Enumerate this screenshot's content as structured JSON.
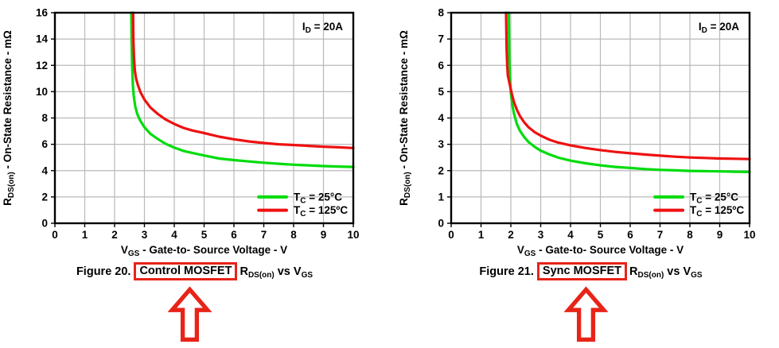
{
  "annotation_color": "#e82318",
  "figures": [
    {
      "caption": {
        "prefix": "Figure 20.",
        "highlight": "Control MOSFET",
        "r_pre": "R",
        "r_sub": "DS(on)",
        "vs": " vs ",
        "v_pre": "V",
        "v_sub": "GS"
      }
    },
    {
      "caption": {
        "prefix": "Figure 21.",
        "highlight": "Sync MOSFET",
        "r_pre": "R",
        "r_sub": "DS(on)",
        "vs": " vs ",
        "v_pre": "V",
        "v_sub": "GS"
      }
    }
  ],
  "chart_data": [
    {
      "type": "line",
      "title": "Control MOSFET RDS(on) vs VGS",
      "corner_annotation": {
        "pre": "I",
        "sub": "D",
        "post": " = 20A"
      },
      "xlabel": {
        "pre": "V",
        "sub": "GS",
        "post": " - Gate-to- Source Voltage - V"
      },
      "ylabel": {
        "pre": "R",
        "sub": "DS(on)",
        "post": " - On-State Resistance - mΩ"
      },
      "xlim": [
        0,
        10
      ],
      "ylim": [
        0,
        16
      ],
      "xticks": [
        0,
        1,
        2,
        3,
        4,
        5,
        6,
        7,
        8,
        9,
        10
      ],
      "yticks": [
        0,
        2,
        4,
        6,
        8,
        10,
        12,
        14,
        16
      ],
      "grid": true,
      "grid_color": "#b9b9b9",
      "axis_color": "#000000",
      "legend_position": "bottom-right",
      "series": [
        {
          "name": {
            "pre": "T",
            "sub": "C",
            "post": " = 25°C"
          },
          "color": "#00dc0c",
          "points": [
            [
              2.56,
              16
            ],
            [
              2.57,
              14
            ],
            [
              2.59,
              12
            ],
            [
              2.61,
              10.6
            ],
            [
              2.64,
              9.7
            ],
            [
              2.69,
              8.9
            ],
            [
              2.76,
              8.3
            ],
            [
              2.86,
              7.8
            ],
            [
              3.0,
              7.3
            ],
            [
              3.2,
              6.8
            ],
            [
              3.45,
              6.4
            ],
            [
              3.7,
              6.05
            ],
            [
              4.0,
              5.75
            ],
            [
              4.3,
              5.5
            ],
            [
              4.6,
              5.35
            ],
            [
              5.0,
              5.15
            ],
            [
              5.5,
              4.92
            ],
            [
              6.0,
              4.8
            ],
            [
              6.5,
              4.7
            ],
            [
              7.0,
              4.6
            ],
            [
              7.5,
              4.52
            ],
            [
              8.0,
              4.45
            ],
            [
              8.5,
              4.4
            ],
            [
              9.0,
              4.35
            ],
            [
              9.5,
              4.31
            ],
            [
              10,
              4.28
            ]
          ]
        },
        {
          "name": {
            "pre": "T",
            "sub": "C",
            "post": " = 125ºC"
          },
          "color": "#ee1111",
          "points": [
            [
              2.62,
              16
            ],
            [
              2.63,
              14
            ],
            [
              2.65,
              12.6
            ],
            [
              2.68,
              11.6
            ],
            [
              2.72,
              11.0
            ],
            [
              2.78,
              10.5
            ],
            [
              2.87,
              9.95
            ],
            [
              3.0,
              9.4
            ],
            [
              3.2,
              8.8
            ],
            [
              3.45,
              8.3
            ],
            [
              3.7,
              7.9
            ],
            [
              4.0,
              7.55
            ],
            [
              4.3,
              7.25
            ],
            [
              4.6,
              7.05
            ],
            [
              5.0,
              6.85
            ],
            [
              5.5,
              6.58
            ],
            [
              6.0,
              6.38
            ],
            [
              6.5,
              6.22
            ],
            [
              7.0,
              6.1
            ],
            [
              7.5,
              6.0
            ],
            [
              8.0,
              5.95
            ],
            [
              8.5,
              5.88
            ],
            [
              9.0,
              5.82
            ],
            [
              9.5,
              5.77
            ],
            [
              10,
              5.72
            ]
          ]
        }
      ]
    },
    {
      "type": "line",
      "title": "Sync MOSFET RDS(on) vs VGS",
      "corner_annotation": {
        "pre": "I",
        "sub": "D",
        "post": " = 20A"
      },
      "xlabel": {
        "pre": "V",
        "sub": "GS",
        "post": " - Gate-to- Source Voltage - V"
      },
      "ylabel": {
        "pre": "R",
        "sub": "DS(on)",
        "post": " - On-State Resistance - mΩ"
      },
      "xlim": [
        0,
        10
      ],
      "ylim": [
        0,
        8
      ],
      "xticks": [
        0,
        1,
        2,
        3,
        4,
        5,
        6,
        7,
        8,
        9,
        10
      ],
      "yticks": [
        0,
        1,
        2,
        3,
        4,
        5,
        6,
        7,
        8
      ],
      "grid": true,
      "grid_color": "#b9b9b9",
      "axis_color": "#000000",
      "legend_position": "bottom-right",
      "series": [
        {
          "name": {
            "pre": "T",
            "sub": "C",
            "post": " = 25°C"
          },
          "color": "#00dc0c",
          "points": [
            [
              1.93,
              8
            ],
            [
              1.94,
              7
            ],
            [
              1.95,
              6.2
            ],
            [
              1.97,
              5.6
            ],
            [
              2.0,
              4.95
            ],
            [
              2.05,
              4.5
            ],
            [
              2.1,
              4.18
            ],
            [
              2.2,
              3.78
            ],
            [
              2.3,
              3.52
            ],
            [
              2.45,
              3.27
            ],
            [
              2.6,
              3.08
            ],
            [
              2.8,
              2.9
            ],
            [
              3.0,
              2.76
            ],
            [
              3.3,
              2.61
            ],
            [
              3.6,
              2.49
            ],
            [
              4.0,
              2.38
            ],
            [
              4.5,
              2.28
            ],
            [
              5.0,
              2.2
            ],
            [
              5.5,
              2.14
            ],
            [
              6.0,
              2.1
            ],
            [
              6.5,
              2.06
            ],
            [
              7.0,
              2.03
            ],
            [
              7.5,
              2.01
            ],
            [
              8.0,
              1.99
            ],
            [
              8.5,
              1.98
            ],
            [
              9.0,
              1.97
            ],
            [
              9.5,
              1.96
            ],
            [
              10,
              1.95
            ]
          ]
        },
        {
          "name": {
            "pre": "T",
            "sub": "C",
            "post": " = 125ºC"
          },
          "color": "#ee1111",
          "points": [
            [
              1.84,
              8
            ],
            [
              1.85,
              7.2
            ],
            [
              1.86,
              6.5
            ],
            [
              1.88,
              5.95
            ],
            [
              1.9,
              5.6
            ],
            [
              1.93,
              5.45
            ],
            [
              1.98,
              5.18
            ],
            [
              2.04,
              4.88
            ],
            [
              2.1,
              4.62
            ],
            [
              2.2,
              4.32
            ],
            [
              2.3,
              4.08
            ],
            [
              2.45,
              3.83
            ],
            [
              2.6,
              3.64
            ],
            [
              2.8,
              3.46
            ],
            [
              3.0,
              3.33
            ],
            [
              3.3,
              3.17
            ],
            [
              3.6,
              3.06
            ],
            [
              4.0,
              2.96
            ],
            [
              4.5,
              2.86
            ],
            [
              5.0,
              2.78
            ],
            [
              5.5,
              2.71
            ],
            [
              6.0,
              2.66
            ],
            [
              6.5,
              2.61
            ],
            [
              7.0,
              2.57
            ],
            [
              7.5,
              2.53
            ],
            [
              8.0,
              2.5
            ],
            [
              8.5,
              2.48
            ],
            [
              9.0,
              2.46
            ],
            [
              9.5,
              2.45
            ],
            [
              10,
              2.44
            ]
          ]
        }
      ]
    }
  ]
}
